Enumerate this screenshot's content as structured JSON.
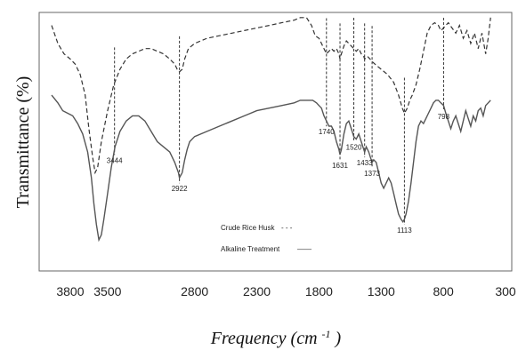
{
  "chart_data": {
    "type": "line",
    "xlabel_main": "Frequency (cm",
    "xlabel_sup": "-1",
    "xlabel_close": ")",
    "ylabel": "Transmittance (%)",
    "xlim": [
      4050,
      250
    ],
    "x_reversed": true,
    "x_ticks": [
      {
        "value": 3800,
        "label": "3800"
      },
      {
        "value": 3500,
        "label": "3500"
      },
      {
        "value": 2800,
        "label": "2800"
      },
      {
        "value": 2300,
        "label": "2300"
      },
      {
        "value": 1800,
        "label": "1800"
      },
      {
        "value": 1300,
        "label": "1300"
      },
      {
        "value": 800,
        "label": "800"
      },
      {
        "value": 300,
        "label": "300"
      }
    ],
    "y_ticks_shown": false,
    "grid": false,
    "legend": {
      "placement": "bottom-center",
      "entries": [
        {
          "label": "Crude Rice Husk",
          "swatch": "- - -",
          "style": "dashed"
        },
        {
          "label": "Alkaline Treatment",
          "swatch": "——",
          "style": "solid"
        }
      ]
    },
    "peak_labels": [
      {
        "x": 3444,
        "label": "3444"
      },
      {
        "x": 2922,
        "label": "2922"
      },
      {
        "x": 1740,
        "label": "1740"
      },
      {
        "x": 1631,
        "label": "1631"
      },
      {
        "x": 1520,
        "label": "1520"
      },
      {
        "x": 1433,
        "label": "1433"
      },
      {
        "x": 1373,
        "label": "1373"
      },
      {
        "x": 1113,
        "label": "1113"
      },
      {
        "x": 798,
        "label": "798"
      }
    ],
    "series": [
      {
        "name": "Crude Rice Husk",
        "style": "dashed",
        "color": "#333333",
        "points": [
          [
            3950,
            95
          ],
          [
            3900,
            88
          ],
          [
            3850,
            84
          ],
          [
            3800,
            82
          ],
          [
            3760,
            80
          ],
          [
            3720,
            76
          ],
          [
            3680,
            68
          ],
          [
            3650,
            55
          ],
          [
            3620,
            44
          ],
          [
            3600,
            38
          ],
          [
            3580,
            40
          ],
          [
            3550,
            50
          ],
          [
            3500,
            62
          ],
          [
            3450,
            72
          ],
          [
            3400,
            78
          ],
          [
            3350,
            82
          ],
          [
            3300,
            84
          ],
          [
            3250,
            85
          ],
          [
            3200,
            86
          ],
          [
            3150,
            86
          ],
          [
            3100,
            85
          ],
          [
            3050,
            84
          ],
          [
            3000,
            82
          ],
          [
            2960,
            80
          ],
          [
            2940,
            78
          ],
          [
            2922,
            77
          ],
          [
            2900,
            78
          ],
          [
            2880,
            82
          ],
          [
            2850,
            86
          ],
          [
            2800,
            88
          ],
          [
            2700,
            90
          ],
          [
            2600,
            91
          ],
          [
            2500,
            92
          ],
          [
            2400,
            93
          ],
          [
            2300,
            94
          ],
          [
            2200,
            95
          ],
          [
            2100,
            96
          ],
          [
            2000,
            97
          ],
          [
            1950,
            98
          ],
          [
            1900,
            98
          ],
          [
            1860,
            95
          ],
          [
            1830,
            91
          ],
          [
            1800,
            90
          ],
          [
            1780,
            88
          ],
          [
            1760,
            86
          ],
          [
            1740,
            84
          ],
          [
            1720,
            85
          ],
          [
            1700,
            86
          ],
          [
            1680,
            85
          ],
          [
            1660,
            86
          ],
          [
            1640,
            84
          ],
          [
            1631,
            82
          ],
          [
            1620,
            84
          ],
          [
            1600,
            87
          ],
          [
            1580,
            89
          ],
          [
            1560,
            88
          ],
          [
            1540,
            87
          ],
          [
            1520,
            86
          ],
          [
            1500,
            85
          ],
          [
            1480,
            86
          ],
          [
            1460,
            84
          ],
          [
            1440,
            83
          ],
          [
            1433,
            82
          ],
          [
            1410,
            83
          ],
          [
            1390,
            82
          ],
          [
            1373,
            81
          ],
          [
            1350,
            80
          ],
          [
            1300,
            78
          ],
          [
            1250,
            76
          ],
          [
            1200,
            73
          ],
          [
            1160,
            68
          ],
          [
            1130,
            63
          ],
          [
            1113,
            61
          ],
          [
            1090,
            63
          ],
          [
            1070,
            66
          ],
          [
            1050,
            68
          ],
          [
            1020,
            72
          ],
          [
            990,
            78
          ],
          [
            960,
            85
          ],
          [
            930,
            92
          ],
          [
            900,
            95
          ],
          [
            870,
            96
          ],
          [
            840,
            95
          ],
          [
            820,
            93
          ],
          [
            798,
            94
          ],
          [
            780,
            95
          ],
          [
            760,
            96
          ],
          [
            730,
            94
          ],
          [
            700,
            92
          ],
          [
            670,
            95
          ],
          [
            640,
            90
          ],
          [
            610,
            93
          ],
          [
            580,
            88
          ],
          [
            550,
            92
          ],
          [
            520,
            86
          ],
          [
            490,
            92
          ],
          [
            460,
            84
          ],
          [
            440,
            90
          ],
          [
            420,
            98
          ]
        ]
      },
      {
        "name": "Alkaline Treatment",
        "style": "solid",
        "color": "#555555",
        "points": [
          [
            3950,
            68
          ],
          [
            3900,
            65
          ],
          [
            3860,
            62
          ],
          [
            3820,
            61
          ],
          [
            3780,
            60
          ],
          [
            3740,
            57
          ],
          [
            3700,
            53
          ],
          [
            3660,
            46
          ],
          [
            3630,
            36
          ],
          [
            3610,
            26
          ],
          [
            3590,
            18
          ],
          [
            3570,
            12
          ],
          [
            3550,
            14
          ],
          [
            3530,
            20
          ],
          [
            3500,
            30
          ],
          [
            3470,
            40
          ],
          [
            3440,
            48
          ],
          [
            3400,
            54
          ],
          [
            3350,
            58
          ],
          [
            3300,
            60
          ],
          [
            3250,
            60
          ],
          [
            3200,
            58
          ],
          [
            3150,
            54
          ],
          [
            3100,
            50
          ],
          [
            3050,
            48
          ],
          [
            3000,
            46
          ],
          [
            2960,
            42
          ],
          [
            2930,
            38
          ],
          [
            2922,
            36
          ],
          [
            2900,
            38
          ],
          [
            2880,
            43
          ],
          [
            2860,
            47
          ],
          [
            2840,
            50
          ],
          [
            2800,
            52
          ],
          [
            2700,
            54
          ],
          [
            2600,
            56
          ],
          [
            2500,
            58
          ],
          [
            2400,
            60
          ],
          [
            2300,
            62
          ],
          [
            2200,
            63
          ],
          [
            2100,
            64
          ],
          [
            2000,
            65
          ],
          [
            1950,
            66
          ],
          [
            1900,
            66
          ],
          [
            1850,
            66
          ],
          [
            1820,
            65
          ],
          [
            1800,
            64
          ],
          [
            1780,
            63
          ],
          [
            1760,
            60
          ],
          [
            1740,
            58
          ],
          [
            1720,
            56
          ],
          [
            1700,
            56
          ],
          [
            1680,
            54
          ],
          [
            1660,
            50
          ],
          [
            1640,
            47
          ],
          [
            1631,
            45
          ],
          [
            1620,
            47
          ],
          [
            1600,
            53
          ],
          [
            1580,
            57
          ],
          [
            1560,
            58
          ],
          [
            1540,
            55
          ],
          [
            1520,
            52
          ],
          [
            1500,
            51
          ],
          [
            1480,
            53
          ],
          [
            1460,
            50
          ],
          [
            1440,
            47
          ],
          [
            1433,
            46
          ],
          [
            1420,
            48
          ],
          [
            1400,
            46
          ],
          [
            1380,
            43
          ],
          [
            1373,
            42
          ],
          [
            1360,
            43
          ],
          [
            1340,
            42
          ],
          [
            1320,
            38
          ],
          [
            1300,
            34
          ],
          [
            1280,
            32
          ],
          [
            1260,
            34
          ],
          [
            1240,
            36
          ],
          [
            1220,
            34
          ],
          [
            1200,
            30
          ],
          [
            1180,
            26
          ],
          [
            1160,
            22
          ],
          [
            1140,
            20
          ],
          [
            1125,
            19
          ],
          [
            1113,
            20
          ],
          [
            1100,
            22
          ],
          [
            1080,
            27
          ],
          [
            1060,
            34
          ],
          [
            1040,
            42
          ],
          [
            1020,
            50
          ],
          [
            1000,
            56
          ],
          [
            980,
            58
          ],
          [
            960,
            57
          ],
          [
            940,
            59
          ],
          [
            920,
            61
          ],
          [
            900,
            63
          ],
          [
            880,
            65
          ],
          [
            860,
            66
          ],
          [
            840,
            66
          ],
          [
            820,
            65
          ],
          [
            798,
            64
          ],
          [
            780,
            61
          ],
          [
            760,
            58
          ],
          [
            740,
            55
          ],
          [
            720,
            58
          ],
          [
            700,
            60
          ],
          [
            680,
            57
          ],
          [
            660,
            54
          ],
          [
            640,
            58
          ],
          [
            620,
            62
          ],
          [
            600,
            59
          ],
          [
            580,
            56
          ],
          [
            560,
            60
          ],
          [
            540,
            58
          ],
          [
            520,
            62
          ],
          [
            500,
            63
          ],
          [
            480,
            60
          ],
          [
            460,
            64
          ],
          [
            440,
            65
          ],
          [
            420,
            66
          ]
        ]
      }
    ]
  }
}
